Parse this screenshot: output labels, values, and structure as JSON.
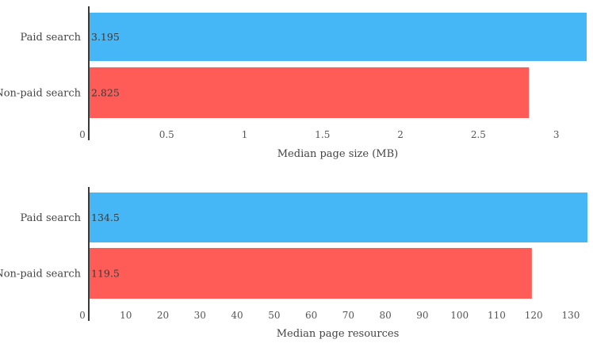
{
  "chart_data": [
    {
      "type": "bar",
      "orientation": "horizontal",
      "categories": [
        "Paid search",
        "Non-paid search"
      ],
      "values": [
        3.195,
        2.825
      ],
      "value_labels": [
        "3.195",
        "2.825"
      ],
      "colors": [
        "#45b6f6",
        "#ff5c57"
      ],
      "xlabel": "Median page size (MB)",
      "xlim": [
        0,
        3.2
      ],
      "xticks": [
        {
          "value": 0,
          "label": "0"
        },
        {
          "value": 0.5,
          "label": "0.5"
        },
        {
          "value": 1,
          "label": "1"
        },
        {
          "value": 1.5,
          "label": "1.5"
        },
        {
          "value": 2,
          "label": "2"
        },
        {
          "value": 2.5,
          "label": "2.5"
        },
        {
          "value": 3,
          "label": "3"
        }
      ],
      "grid": false,
      "legend": "none"
    },
    {
      "type": "bar",
      "orientation": "horizontal",
      "categories": [
        "Paid search",
        "Non-paid search"
      ],
      "values": [
        134.5,
        119.5
      ],
      "value_labels": [
        "134.5",
        "119.5"
      ],
      "colors": [
        "#45b6f6",
        "#ff5c57"
      ],
      "xlabel": "Median page resources",
      "xlim": [
        0,
        134.5
      ],
      "xticks": [
        {
          "value": 0,
          "label": "0"
        },
        {
          "value": 10,
          "label": "10"
        },
        {
          "value": 20,
          "label": "20"
        },
        {
          "value": 30,
          "label": "30"
        },
        {
          "value": 40,
          "label": "40"
        },
        {
          "value": 50,
          "label": "50"
        },
        {
          "value": 60,
          "label": "60"
        },
        {
          "value": 70,
          "label": "70"
        },
        {
          "value": 80,
          "label": "80"
        },
        {
          "value": 90,
          "label": "90"
        },
        {
          "value": 100,
          "label": "100"
        },
        {
          "value": 110,
          "label": "110"
        },
        {
          "value": 120,
          "label": "120"
        },
        {
          "value": 130,
          "label": "130"
        }
      ],
      "grid": false,
      "legend": "none"
    }
  ]
}
